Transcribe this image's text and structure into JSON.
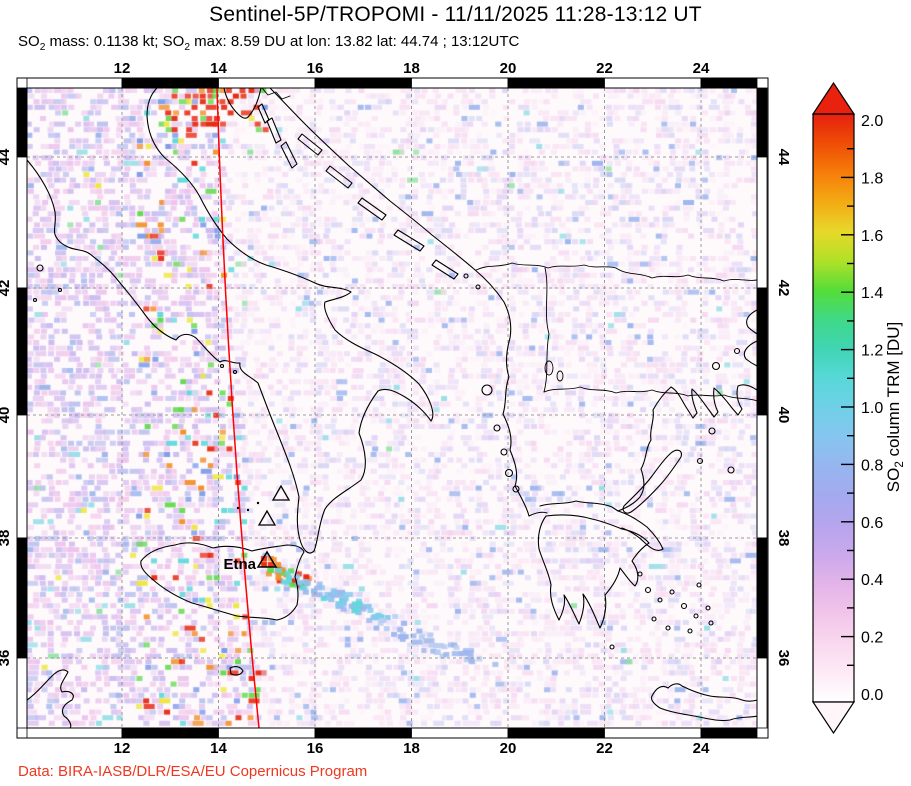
{
  "title": "Sentinel-5P/TROPOMI - 11/11/2025 11:28-13:12 UT",
  "subtitle": {
    "p1": "SO",
    "sub1": "2",
    "p2": " mass: 0.1138 kt; SO",
    "sub2": "2",
    "p3": " max: 8.59 DU at lon: 13.82 lat: 44.74 ; 13:12UTC"
  },
  "credit": "Data: BIRA-IASB/DLR/ESA/EU Copernicus Program",
  "axes": {
    "lon_ticks": [
      "12",
      "14",
      "16",
      "18",
      "20",
      "22",
      "24"
    ],
    "lat_ticks": [
      "44",
      "42",
      "40",
      "38",
      "36"
    ]
  },
  "map": {
    "volcano_label": "Etna",
    "unlabeled_volcano_markers": 2
  },
  "colorbar": {
    "label": {
      "p1": "SO",
      "sub": "2",
      "p2": " column TRM [DU]"
    },
    "ticks": [
      "0.0",
      "0.2",
      "0.4",
      "0.6",
      "0.8",
      "1.0",
      "1.2",
      "1.4",
      "1.6",
      "1.8",
      "2.0"
    ],
    "stops": [
      [
        0.0,
        "#ffffff"
      ],
      [
        0.1,
        "#fdeaf6"
      ],
      [
        0.2,
        "#f9d8ef"
      ],
      [
        0.3,
        "#f1c5ea"
      ],
      [
        0.4,
        "#e3b4e9"
      ],
      [
        0.5,
        "#cba9ec"
      ],
      [
        0.6,
        "#b6a5ee"
      ],
      [
        0.7,
        "#a5a9ef"
      ],
      [
        0.8,
        "#97b5f0"
      ],
      [
        0.9,
        "#86c5f0"
      ],
      [
        1.0,
        "#70d0e8"
      ],
      [
        1.1,
        "#58d8d8"
      ],
      [
        1.2,
        "#40d5b4"
      ],
      [
        1.3,
        "#3fd987"
      ],
      [
        1.4,
        "#55dd38"
      ],
      [
        1.5,
        "#b0e028"
      ],
      [
        1.6,
        "#e8d829"
      ],
      [
        1.7,
        "#f3ab14"
      ],
      [
        1.8,
        "#f67d0a"
      ],
      [
        1.9,
        "#ef4d06"
      ],
      [
        2.0,
        "#e62010"
      ]
    ]
  },
  "chart_data": {
    "type": "heatmap",
    "instrument": "Sentinel-5P/TROPOMI",
    "date": "11/11/2025",
    "time_window_ut": "11:28-13:12",
    "so2_mass_kt": 0.1138,
    "so2_max_du": 8.59,
    "so2_max_lon": 13.82,
    "so2_max_lat": 44.74,
    "so2_max_time": "13:12UTC",
    "lon_range": [
      10.0,
      25.2
    ],
    "lat_range": [
      34.8,
      45.1
    ],
    "colorbar_range_du": [
      0.0,
      2.0
    ],
    "colorbar_units": "DU",
    "annotations": [
      {
        "label": "Etna",
        "marker": "triangle"
      }
    ]
  },
  "colors": {
    "credit": "#ee3820",
    "orbit_line": "#ff0000",
    "grid": "#999999",
    "coast": "#000000",
    "noise_red": "#e82a14"
  }
}
